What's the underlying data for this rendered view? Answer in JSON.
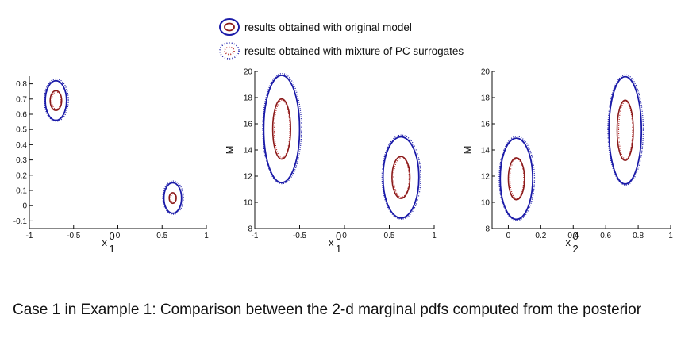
{
  "legend": {
    "items": [
      {
        "label": "results obtained with original model",
        "outer_color": "#1a1aa8",
        "inner_color": "#8b1a1a",
        "style": "solid"
      },
      {
        "label": "results obtained with mixture of PC surrogates",
        "outer_color": "#1a1aa8",
        "inner_color": "#b01a1a",
        "style": "dotted"
      }
    ]
  },
  "caption": "Case 1 in Example 1: Comparison between the 2-d marginal pdfs computed from the posterior",
  "colors": {
    "outer": "#1a1aa8",
    "inner": "#8b1a1a"
  },
  "chart_data": [
    {
      "type": "contour",
      "xlabel": "x",
      "xlabel_sup": "0",
      "xlabel_sub": "1",
      "ylabel": "",
      "xlim": [
        -1,
        1
      ],
      "ylim": [
        -0.15,
        0.85
      ],
      "xticks": [
        "-1",
        "-0.5",
        "0",
        "0.5",
        "1"
      ],
      "xtick_values": [
        -1,
        -0.5,
        0,
        0.5,
        1
      ],
      "yticks": [
        "-0.1",
        "0",
        "0.1",
        "0.2",
        "0.3",
        "0.4",
        "0.5",
        "0.6",
        "0.7",
        "0.8"
      ],
      "ytick_values": [
        -0.1,
        0,
        0.1,
        0.2,
        0.3,
        0.4,
        0.5,
        0.6,
        0.7,
        0.8
      ],
      "modes": [
        {
          "cx": -0.7,
          "cy": 0.69,
          "outer": [
            0.12,
            0.13
          ],
          "inner": [
            0.065,
            0.065
          ]
        },
        {
          "cx": 0.62,
          "cy": 0.05,
          "outer": [
            0.1,
            0.1
          ],
          "inner": [
            0.04,
            0.035
          ]
        }
      ]
    },
    {
      "type": "contour",
      "xlabel": "x",
      "xlabel_sup": "0",
      "xlabel_sub": "1",
      "ylabel": "M",
      "xlim": [
        -1,
        1
      ],
      "ylim": [
        8,
        20
      ],
      "xticks": [
        "-1",
        "-0.5",
        "0",
        "0.5",
        "1"
      ],
      "xtick_values": [
        -1,
        -0.5,
        0,
        0.5,
        1
      ],
      "yticks": [
        "8",
        "10",
        "12",
        "14",
        "16",
        "18",
        "20"
      ],
      "ytick_values": [
        8,
        10,
        12,
        14,
        16,
        18,
        20
      ],
      "modes": [
        {
          "cx": -0.7,
          "cy": 15.6,
          "outer": [
            0.2,
            4.1
          ],
          "inner": [
            0.1,
            2.3
          ]
        },
        {
          "cx": 0.63,
          "cy": 11.9,
          "outer": [
            0.2,
            3.1
          ],
          "inner": [
            0.1,
            1.6
          ]
        }
      ]
    },
    {
      "type": "contour",
      "xlabel": "x",
      "xlabel_sup": "0",
      "xlabel_sub": "2",
      "ylabel": "M",
      "xlim": [
        -0.1,
        1
      ],
      "ylim": [
        8,
        20
      ],
      "xticks": [
        "0",
        "0.2",
        "0.4",
        "0.6",
        "0.8",
        "1"
      ],
      "xtick_values": [
        0,
        0.2,
        0.4,
        0.6,
        0.8,
        1
      ],
      "yticks": [
        "8",
        "10",
        "12",
        "14",
        "16",
        "18",
        "20"
      ],
      "ytick_values": [
        8,
        10,
        12,
        14,
        16,
        18,
        20
      ],
      "modes": [
        {
          "cx": 0.05,
          "cy": 11.8,
          "outer": [
            0.1,
            3.1
          ],
          "inner": [
            0.05,
            1.6
          ]
        },
        {
          "cx": 0.72,
          "cy": 15.5,
          "outer": [
            0.1,
            4.1
          ],
          "inner": [
            0.05,
            2.3
          ]
        }
      ]
    }
  ]
}
